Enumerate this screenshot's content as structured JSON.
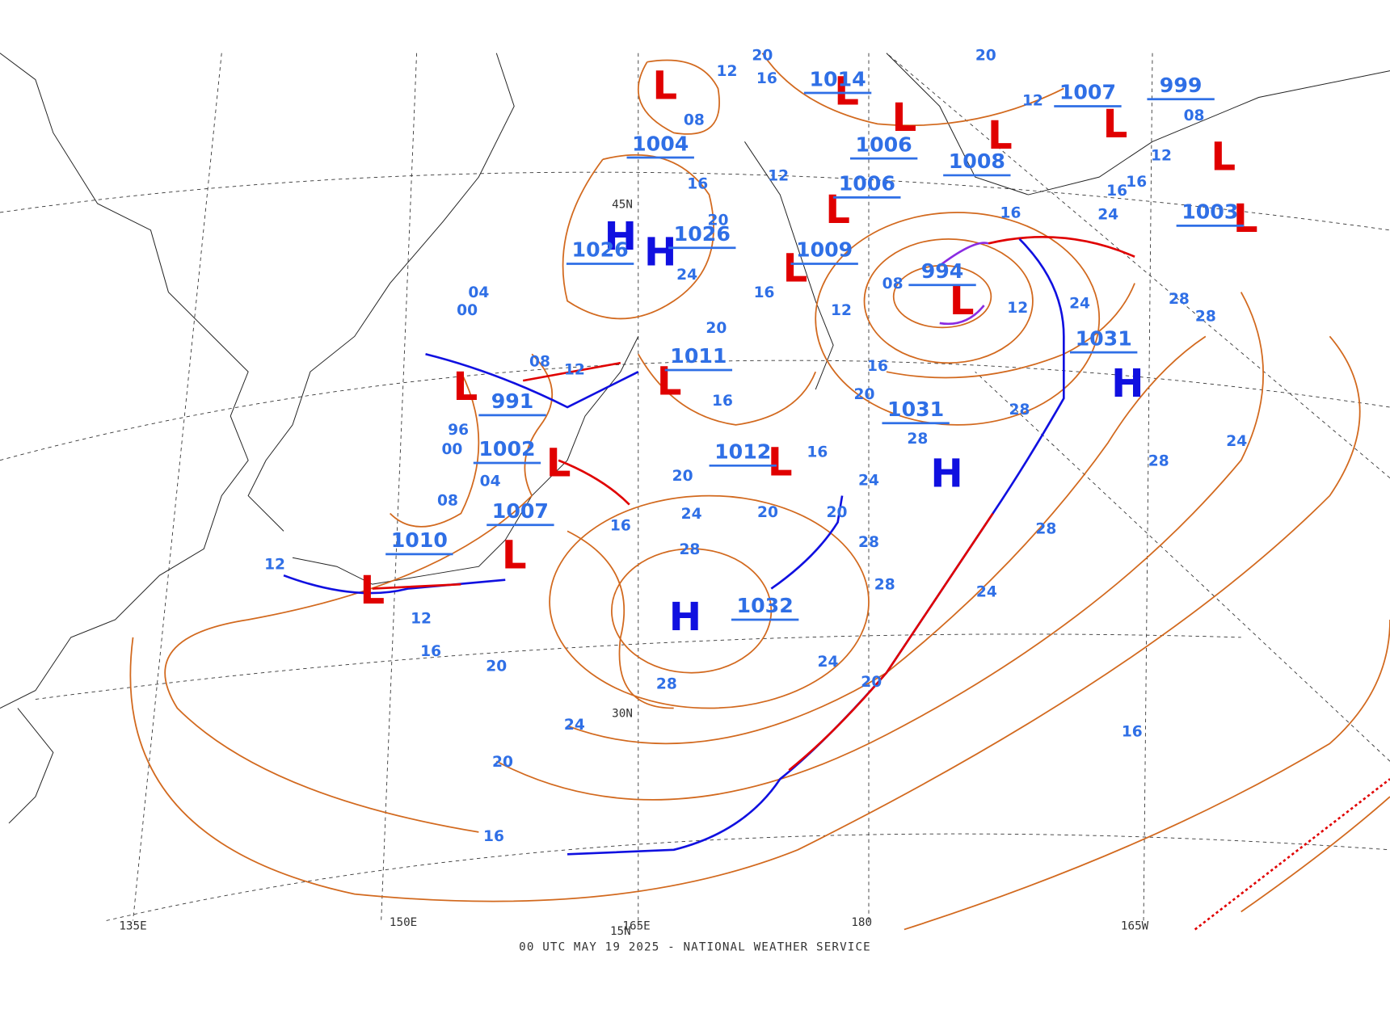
{
  "footer": "00 UTC MAY 19 2025 - NATIONAL WEATHER SERVICE",
  "longitude_labels": [
    "135E",
    "150E",
    "165E",
    "180",
    "165W"
  ],
  "latitude_labels": [
    "45N",
    "30N",
    "15N"
  ],
  "centers": [
    {
      "type": "H",
      "pressure": "1026"
    },
    {
      "type": "H",
      "pressure": "1026"
    },
    {
      "type": "L",
      "pressure": "1004"
    },
    {
      "type": "L",
      "pressure": "1014"
    },
    {
      "type": "L",
      "pressure": "1006"
    },
    {
      "type": "L",
      "pressure": "1006"
    },
    {
      "type": "L",
      "pressure": "1009"
    },
    {
      "type": "L",
      "pressure": "994"
    },
    {
      "type": "L",
      "pressure": "1008"
    },
    {
      "type": "L",
      "pressure": "1007"
    },
    {
      "type": "L",
      "pressure": "999"
    },
    {
      "type": "L",
      "pressure": "1003"
    },
    {
      "type": "H",
      "pressure": "1031"
    },
    {
      "type": "H",
      "pressure": "1031"
    },
    {
      "type": "L",
      "pressure": "1011"
    },
    {
      "type": "L",
      "pressure": "991"
    },
    {
      "type": "L",
      "pressure": "1002"
    },
    {
      "type": "L",
      "pressure": "1007"
    },
    {
      "type": "L",
      "pressure": "1010"
    },
    {
      "type": "L",
      "pressure": "1012"
    },
    {
      "type": "H",
      "pressure": "1032"
    }
  ],
  "isobar_labels": [
    "12",
    "20",
    "16",
    "08",
    "16",
    "20",
    "24",
    "20",
    "16",
    "12",
    "08",
    "12",
    "16",
    "20",
    "12",
    "24",
    "28",
    "28",
    "28",
    "28",
    "24",
    "28",
    "28",
    "24",
    "24",
    "28",
    "28",
    "20",
    "16",
    "20",
    "24",
    "28",
    "20",
    "16",
    "16",
    "12",
    "08",
    "04",
    "00",
    "96",
    "00",
    "04",
    "08",
    "12",
    "12",
    "16",
    "20",
    "24",
    "20",
    "28",
    "24",
    "20",
    "16",
    "16",
    "16",
    "24",
    "16",
    "16",
    "12",
    "12",
    "08",
    "20"
  ]
}
